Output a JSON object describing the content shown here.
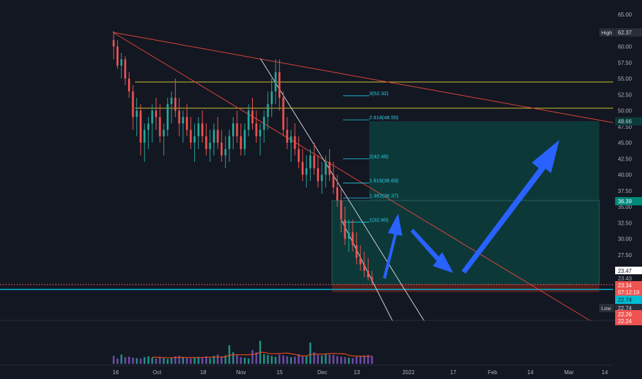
{
  "colors": {
    "background": "#131722",
    "grid": "#1e222d",
    "text": "#b2b5be",
    "up": "#26a69a",
    "down": "#ef5350",
    "accent_box": "#0d3a3a",
    "fib_text": "#22d3ee",
    "yellow": "#d4c433",
    "trend_red": "#e0453a",
    "white_line": "#d1d4dc",
    "cyan_hline": "#00bcd4",
    "arrow_blue": "#2962ff",
    "volume_line": "#e64a19"
  },
  "icons": [
    "arrow-up-icon",
    "arrow-down-icon"
  ],
  "chart_data": {
    "type": "candlestick",
    "ylim": [
      17.5,
      66
    ],
    "price_axis_ticks": [
      "65.00",
      "60.00",
      "57.50",
      "55.00",
      "52.50",
      "50.00",
      "47.50",
      "45.00",
      "42.50",
      "40.00",
      "37.50",
      "35.00",
      "32.50",
      "30.00",
      "27.50"
    ],
    "time_axis_labels": [
      "16",
      "Oct",
      "18",
      "Nov",
      "15",
      "Dec",
      "13",
      "2022",
      "17",
      "Feb",
      "14",
      "Mar",
      "14"
    ],
    "volume_axis_ticks": [
      "800K",
      "400K"
    ],
    "high": {
      "label": "High",
      "value": "62.37"
    },
    "low": {
      "label": "Low",
      "value": "22.74"
    },
    "price_badges": [
      {
        "value": "48.66"
      },
      {
        "value": "36.39"
      },
      {
        "value": "23.47"
      },
      {
        "value": "23.43"
      },
      {
        "value": "23.34"
      },
      {
        "value": "07:12:19"
      },
      {
        "value": "22.74"
      },
      {
        "value": "22.26"
      },
      {
        "value": "22.24"
      }
    ],
    "fib_levels": [
      {
        "label": "3(52.32)",
        "price": 52.32
      },
      {
        "label": "2.618(48.55)",
        "price": 48.55
      },
      {
        "label": "2(42.46)",
        "price": 42.46
      },
      {
        "label": "1.618(38.69)",
        "price": 38.69
      },
      {
        "label": "1.382(36.37)",
        "price": 36.37
      },
      {
        "label": "1(32.60)",
        "price": 32.6
      }
    ],
    "horizontal_levels": [
      55.0,
      50.8,
      23.3,
      22.7
    ],
    "ohlc_approx": [
      [
        61,
        62.4,
        58,
        60
      ],
      [
        60,
        61,
        56.5,
        57
      ],
      [
        57,
        59,
        55,
        58
      ],
      [
        58,
        58.5,
        54,
        55
      ],
      [
        55,
        56,
        52,
        53
      ],
      [
        53,
        54,
        47,
        49
      ],
      [
        49,
        52,
        46,
        50
      ],
      [
        50,
        51,
        43,
        45
      ],
      [
        45,
        48,
        42,
        47
      ],
      [
        47,
        49,
        44,
        48
      ],
      [
        48,
        51,
        45,
        50
      ],
      [
        50,
        52,
        47,
        49
      ],
      [
        49,
        51,
        45,
        46
      ],
      [
        46,
        48,
        43,
        47
      ],
      [
        47,
        52,
        46,
        51
      ],
      [
        51,
        53,
        48,
        52
      ],
      [
        52,
        55,
        49,
        50
      ],
      [
        50,
        52,
        46,
        48
      ],
      [
        48,
        50,
        45,
        49
      ],
      [
        49,
        51,
        46,
        47
      ],
      [
        47,
        49,
        44,
        45
      ],
      [
        45,
        48,
        42,
        46
      ],
      [
        46,
        49,
        44,
        48
      ],
      [
        48,
        50,
        45,
        46
      ],
      [
        46,
        48,
        43,
        44
      ],
      [
        44,
        47,
        42,
        45
      ],
      [
        45,
        48,
        43,
        47
      ],
      [
        47,
        49,
        44,
        45
      ],
      [
        45,
        47,
        42,
        43
      ],
      [
        43,
        46,
        41,
        44
      ],
      [
        44,
        47,
        42,
        46
      ],
      [
        46,
        49,
        44,
        48
      ],
      [
        48,
        50,
        45,
        46
      ],
      [
        46,
        48,
        43,
        44
      ],
      [
        44,
        48,
        43,
        47
      ],
      [
        47,
        51,
        46,
        50
      ],
      [
        50,
        52,
        47,
        48
      ],
      [
        48,
        50,
        45,
        46
      ],
      [
        46,
        48,
        43,
        47
      ],
      [
        47,
        50,
        45,
        49
      ],
      [
        49,
        53,
        47,
        51
      ],
      [
        51,
        55,
        49,
        53
      ],
      [
        53,
        58,
        51,
        56
      ],
      [
        56,
        58,
        50,
        52
      ],
      [
        52,
        53,
        46,
        47
      ],
      [
        47,
        49,
        44,
        45
      ],
      [
        45,
        47,
        42,
        46
      ],
      [
        46,
        48,
        43,
        44
      ],
      [
        44,
        46,
        41,
        42
      ],
      [
        42,
        44,
        39,
        40
      ],
      [
        40,
        43,
        38,
        41
      ],
      [
        41,
        44,
        39,
        43
      ],
      [
        43,
        45,
        40,
        41
      ],
      [
        41,
        43,
        38,
        39
      ],
      [
        39,
        42,
        37,
        40
      ],
      [
        40,
        43,
        38,
        42
      ],
      [
        42,
        44,
        39,
        40
      ],
      [
        40,
        42,
        37,
        38
      ],
      [
        38,
        40,
        35,
        36
      ],
      [
        36,
        38,
        31,
        33
      ],
      [
        33,
        35,
        29,
        30
      ],
      [
        30,
        33,
        28,
        31
      ],
      [
        31,
        33,
        28,
        29
      ],
      [
        29,
        31,
        26,
        27
      ],
      [
        27,
        29,
        25,
        26
      ],
      [
        26,
        28,
        24,
        25
      ],
      [
        25,
        27,
        23.5,
        24
      ],
      [
        24,
        25,
        22.7,
        23.4
      ]
    ],
    "volume_approx": [
      180,
      120,
      210,
      150,
      160,
      140,
      130,
      120,
      150,
      170,
      140,
      120,
      160,
      130,
      110,
      140,
      170,
      180,
      150,
      130,
      120,
      140,
      160,
      150,
      170,
      130,
      180,
      210,
      160,
      190,
      420,
      260,
      200,
      150,
      140,
      120,
      310,
      260,
      520,
      220,
      200,
      180,
      160,
      210,
      190,
      170,
      150,
      160,
      220,
      180,
      170,
      480,
      260,
      200,
      190,
      230,
      210,
      200,
      170,
      160,
      150,
      140,
      130,
      160,
      180,
      190,
      200,
      180
    ]
  }
}
